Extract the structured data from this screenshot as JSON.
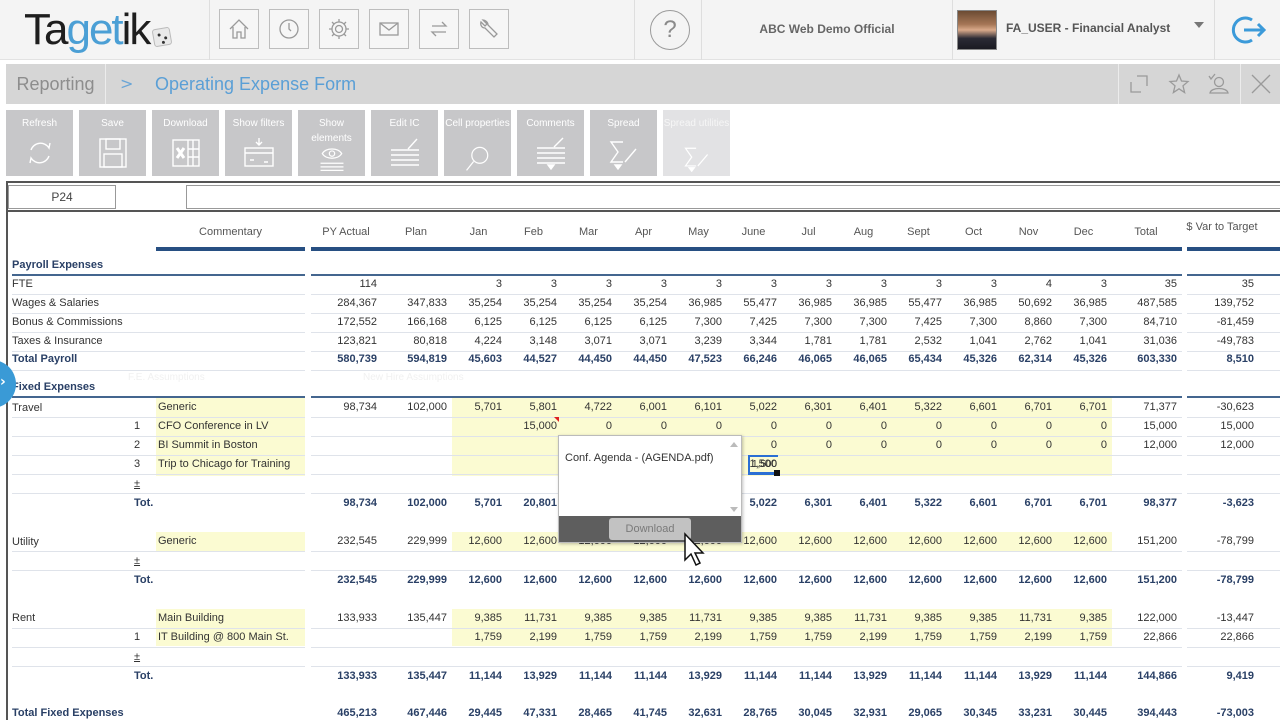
{
  "header": {
    "logo_text_dark": "Ta",
    "logo_text_blue": "get",
    "logo_text_end": "ik",
    "nav_icons": [
      "home-icon",
      "clock-icon",
      "gear-icon",
      "mail-icon",
      "swap-icon",
      "wrench-icon"
    ],
    "help_label": "?",
    "environment": "ABC Web Demo Official",
    "user": "FA_USER - Financial Analyst"
  },
  "breadcrumb": {
    "root": "Reporting",
    "separator": ">",
    "current": "Operating Expense Form"
  },
  "toolbar": {
    "buttons": [
      {
        "label": "Refresh",
        "icon": "refresh-icon"
      },
      {
        "label": "Save",
        "icon": "floppy-icon"
      },
      {
        "label": "Download",
        "icon": "excel-icon"
      },
      {
        "label": "Show filters",
        "icon": "filter-icon"
      },
      {
        "label": "Show elements",
        "icon": "eye-icon"
      },
      {
        "label": "Edit IC",
        "icon": "edit-lines-icon"
      },
      {
        "label": "Cell properties",
        "icon": "magnifier-icon"
      },
      {
        "label": "Comments",
        "icon": "comments-icon"
      },
      {
        "label": "Spread",
        "icon": "sigma-pencil-icon"
      },
      {
        "label": "Spread utilities",
        "icon": "sigma-pencil-icon",
        "disabled": true
      }
    ]
  },
  "formula_bar": {
    "cell_ref": "P24",
    "formula": ""
  },
  "grid": {
    "columns": [
      "Commentary",
      "PY Actual",
      "Plan",
      "Jan",
      "Feb",
      "Mar",
      "Apr",
      "May",
      "June",
      "Jul",
      "Aug",
      "Sept",
      "Oct",
      "Nov",
      "Dec",
      "Total",
      "$ Var to Target"
    ],
    "payroll": {
      "title": "Payroll Expenses",
      "rows": [
        {
          "label": "FTE",
          "values": [
            "114",
            "",
            "3",
            "3",
            "3",
            "3",
            "3",
            "3",
            "3",
            "3",
            "3",
            "3",
            "4",
            "3",
            "35",
            "35"
          ]
        },
        {
          "label": "Wages & Salaries",
          "values": [
            "284,367",
            "347,833",
            "35,254",
            "35,254",
            "35,254",
            "35,254",
            "36,985",
            "55,477",
            "36,985",
            "36,985",
            "55,477",
            "36,985",
            "50,692",
            "36,985",
            "487,585",
            "139,752"
          ]
        },
        {
          "label": "Bonus & Commissions",
          "values": [
            "172,552",
            "166,168",
            "6,125",
            "6,125",
            "6,125",
            "6,125",
            "7,300",
            "7,425",
            "7,300",
            "7,300",
            "7,425",
            "7,300",
            "8,860",
            "7,300",
            "84,710",
            "-81,459"
          ]
        },
        {
          "label": "Taxes & Insurance",
          "values": [
            "123,821",
            "80,818",
            "4,224",
            "3,148",
            "3,071",
            "3,071",
            "3,239",
            "3,344",
            "1,781",
            "1,781",
            "2,532",
            "1,041",
            "2,762",
            "1,041",
            "31,036",
            "-49,783"
          ]
        }
      ],
      "total": {
        "label": "Total Payroll",
        "values": [
          "580,739",
          "594,819",
          "45,603",
          "44,527",
          "44,450",
          "44,450",
          "47,523",
          "66,246",
          "46,065",
          "46,065",
          "65,434",
          "45,326",
          "62,314",
          "45,326",
          "603,330",
          "8,510"
        ]
      }
    },
    "fixed": {
      "title": "Fixed Expenses",
      "travel": {
        "label": "Travel",
        "generic": {
          "comment": "Generic",
          "values": [
            "98,734",
            "102,000",
            "5,701",
            "5,801",
            "4,722",
            "6,001",
            "6,101",
            "5,022",
            "6,301",
            "6,401",
            "5,322",
            "6,601",
            "6,701",
            "6,701",
            "71,377",
            "-30,623"
          ]
        },
        "items": [
          {
            "idx": "1",
            "comment": "CFO Conference in LV",
            "values": [
              "",
              "",
              "",
              "15,000",
              "0",
              "0",
              "0",
              "0",
              "0",
              "0",
              "0",
              "0",
              "0",
              "0",
              "15,000",
              "15,000"
            ]
          },
          {
            "idx": "2",
            "comment": "BI Summit in Boston",
            "values": [
              "",
              "",
              "",
              "",
              "",
              "",
              "",
              "0",
              "0",
              "0",
              "0",
              "0",
              "0",
              "0",
              "12,000",
              "12,000"
            ]
          },
          {
            "idx": "3",
            "comment": "Trip to Chicago for Training",
            "values": [
              "",
              "",
              "",
              "",
              "",
              "",
              "",
              "1,500",
              "",
              "",
              "",
              "",
              "",
              "",
              "",
              ""
            ]
          }
        ],
        "add": "±",
        "total_label": "Tot.",
        "total": [
          "98,734",
          "102,000",
          "5,701",
          "20,801",
          "",
          "",
          "",
          "5,022",
          "6,301",
          "6,401",
          "5,322",
          "6,601",
          "6,701",
          "6,701",
          "98,377",
          "-3,623"
        ]
      },
      "utility": {
        "label": "Utility",
        "generic": {
          "comment": "Generic",
          "values": [
            "232,545",
            "229,999",
            "12,600",
            "12,600",
            "12,600",
            "12,600",
            "12,600",
            "12,600",
            "12,600",
            "12,600",
            "12,600",
            "12,600",
            "12,600",
            "12,600",
            "151,200",
            "-78,799"
          ]
        },
        "add": "±",
        "total_label": "Tot.",
        "total": [
          "232,545",
          "229,999",
          "12,600",
          "12,600",
          "12,600",
          "12,600",
          "12,600",
          "12,600",
          "12,600",
          "12,600",
          "12,600",
          "12,600",
          "12,600",
          "12,600",
          "151,200",
          "-78,799"
        ]
      },
      "rent": {
        "label": "Rent",
        "generic": {
          "comment": "Main Building",
          "values": [
            "133,933",
            "135,447",
            "9,385",
            "11,731",
            "9,385",
            "9,385",
            "11,731",
            "9,385",
            "9,385",
            "11,731",
            "9,385",
            "9,385",
            "11,731",
            "9,385",
            "122,000",
            "-13,447"
          ]
        },
        "items": [
          {
            "idx": "1",
            "comment": "IT Building @ 800 Main St.",
            "values": [
              "",
              "",
              "1,759",
              "2,199",
              "1,759",
              "1,759",
              "2,199",
              "1,759",
              "1,759",
              "2,199",
              "1,759",
              "1,759",
              "2,199",
              "1,759",
              "22,866",
              "22,866"
            ]
          }
        ],
        "add": "±",
        "total_label": "Tot.",
        "total": [
          "133,933",
          "135,447",
          "11,144",
          "13,929",
          "11,144",
          "11,144",
          "13,929",
          "11,144",
          "11,144",
          "13,929",
          "11,144",
          "11,144",
          "13,929",
          "11,144",
          "144,866",
          "9,419"
        ]
      },
      "grand_total": {
        "label": "Total Fixed Expenses",
        "values": [
          "465,213",
          "467,446",
          "29,445",
          "47,331",
          "28,465",
          "41,745",
          "32,631",
          "28,765",
          "30,045",
          "32,931",
          "29,065",
          "30,345",
          "33,231",
          "30,445",
          "394,443",
          "-73,003"
        ]
      }
    }
  },
  "attachment_popup": {
    "item": "Conf. Agenda - (AGENDA.pdf)",
    "download_label": "Download"
  },
  "selected_cell_value": "1,500",
  "colors": {
    "accent_blue": "#3b9ad9",
    "header_bar": "#274f82",
    "input_yellow": "#fbfbd2",
    "toolbar_gray": "#c7c7c9"
  }
}
